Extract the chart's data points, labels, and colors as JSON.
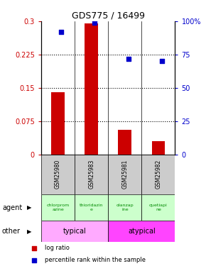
{
  "title": "GDS775 / 16499",
  "samples": [
    "GSM25980",
    "GSM25983",
    "GSM25981",
    "GSM25982"
  ],
  "log_ratio": [
    0.14,
    0.295,
    0.055,
    0.03
  ],
  "percentile_rank": [
    92,
    99,
    72,
    70
  ],
  "bar_color": "#cc0000",
  "dot_color": "#0000cc",
  "ylim_left": [
    0,
    0.3
  ],
  "ylim_right": [
    0,
    100
  ],
  "yticks_left": [
    0,
    0.075,
    0.15,
    0.225,
    0.3
  ],
  "ytick_labels_left": [
    "0",
    "0.075",
    "0.15",
    "0.225",
    "0.3"
  ],
  "yticks_right": [
    0,
    25,
    50,
    75,
    100
  ],
  "ytick_labels_right": [
    "0",
    "25",
    "50",
    "75",
    "100%"
  ],
  "hlines": [
    0.075,
    0.15,
    0.225
  ],
  "agent_labels": [
    "chlorprom\nazine",
    "thioridazin\ne",
    "olanzap\nine",
    "quetiapi\nne"
  ],
  "agent_bg_color": "#ccffcc",
  "agent_text_color": "#008800",
  "other_labels": [
    "typical",
    "atypical"
  ],
  "other_color_typical": "#ffaaff",
  "other_color_atypical": "#ff44ff",
  "row_label_agent": "agent",
  "row_label_other": "other",
  "legend_bar_label": "log ratio",
  "legend_dot_label": "percentile rank within the sample",
  "sample_box_color": "#cccccc",
  "background_color": "#ffffff",
  "bar_width": 0.4
}
